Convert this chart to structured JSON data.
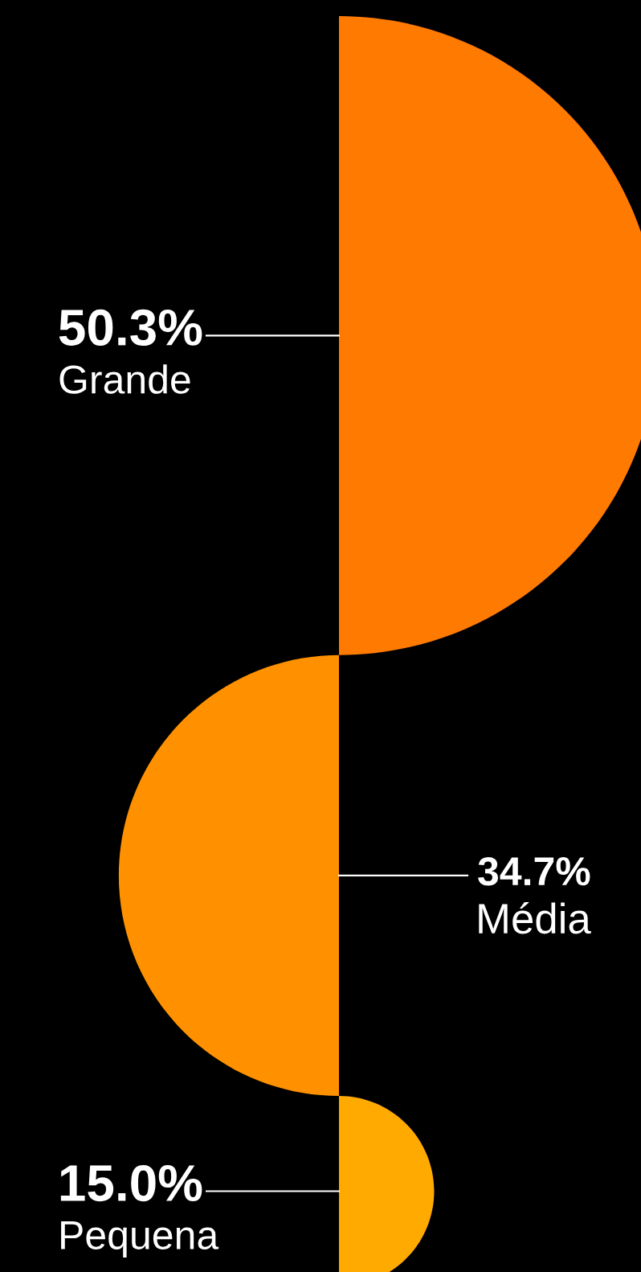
{
  "chart_data": {
    "type": "other",
    "categories": [
      "Grande",
      "Média",
      "Pequena"
    ],
    "values": [
      50.3,
      34.7,
      15.0
    ],
    "colors": [
      "#ff7a00",
      "#ff9100",
      "#ffaa00"
    ],
    "value_labels": [
      "50.3%",
      "34.7%",
      "15.0%"
    ]
  }
}
